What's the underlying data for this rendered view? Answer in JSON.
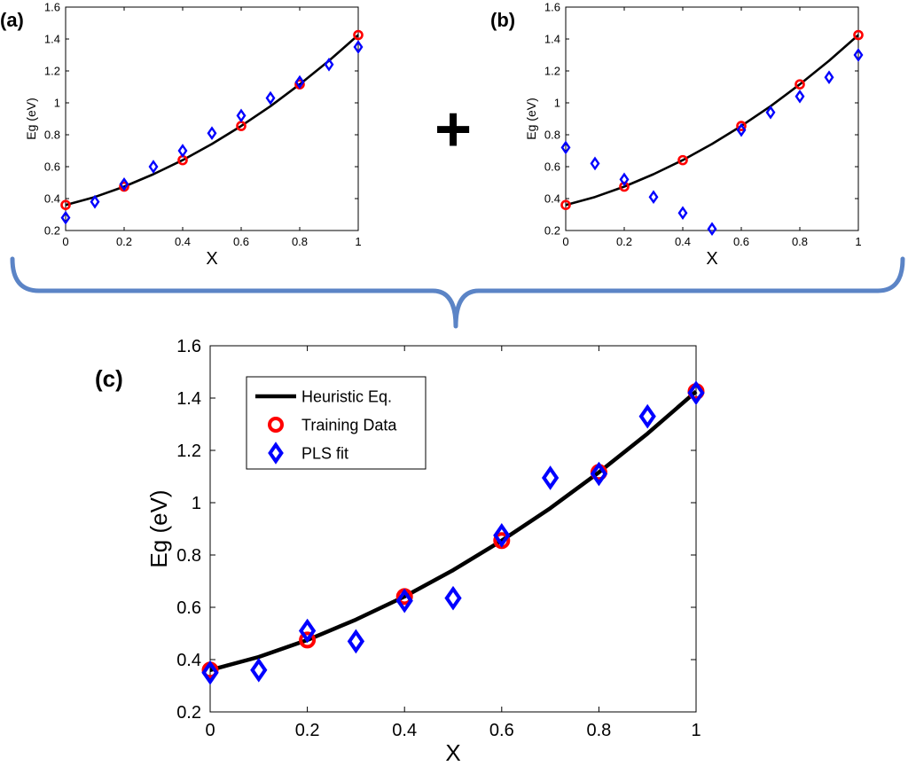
{
  "colors": {
    "heuristic": "#000000",
    "training": "#ff0000",
    "pls": "#0000ff",
    "brace": "#5b84c6",
    "axes": "#000000"
  },
  "plus_symbol": "+",
  "chart_data": [
    {
      "id": "a",
      "type": "scatter",
      "panel_label": "(a)",
      "xlabel": "X",
      "ylabel": "Eg (eV)",
      "xlim": [
        0,
        1
      ],
      "ylim": [
        0.2,
        1.6
      ],
      "xticks": [
        0,
        0.2,
        0.4,
        0.6,
        0.8,
        1
      ],
      "yticks": [
        0.2,
        0.4,
        0.6,
        0.8,
        1,
        1.2,
        1.4,
        1.6
      ],
      "xtick_labels": [
        "0",
        "0.2",
        "0.4",
        "0.6",
        "0.8",
        "1"
      ],
      "ytick_labels": [
        "0.2",
        "0.4",
        "0.6",
        "0.8",
        "1",
        "1.2",
        "1.4",
        "1.6"
      ],
      "series": [
        {
          "name": "Heuristic Eq.",
          "kind": "line",
          "x": [
            0,
            0.1,
            0.2,
            0.3,
            0.4,
            0.5,
            0.6,
            0.7,
            0.8,
            0.9,
            1
          ],
          "y": [
            0.36,
            0.41,
            0.475,
            0.553,
            0.641,
            0.742,
            0.855,
            0.979,
            1.116,
            1.264,
            1.425
          ]
        },
        {
          "name": "Training Data",
          "kind": "circle",
          "x": [
            0,
            0.2,
            0.4,
            0.6,
            0.8,
            1
          ],
          "y": [
            0.36,
            0.475,
            0.641,
            0.855,
            1.116,
            1.425
          ]
        },
        {
          "name": "PLS fit",
          "kind": "diamond",
          "x": [
            0,
            0.1,
            0.2,
            0.3,
            0.4,
            0.5,
            0.6,
            0.7,
            0.8,
            0.9,
            1
          ],
          "y": [
            0.28,
            0.38,
            0.49,
            0.6,
            0.7,
            0.81,
            0.92,
            1.03,
            1.13,
            1.24,
            1.35
          ]
        }
      ]
    },
    {
      "id": "b",
      "type": "scatter",
      "panel_label": "(b)",
      "xlabel": "X",
      "ylabel": "Eg (eV)",
      "xlim": [
        0,
        1
      ],
      "ylim": [
        0.2,
        1.6
      ],
      "xticks": [
        0,
        0.2,
        0.4,
        0.6,
        0.8,
        1
      ],
      "yticks": [
        0.2,
        0.4,
        0.6,
        0.8,
        1,
        1.2,
        1.4,
        1.6
      ],
      "xtick_labels": [
        "0",
        "0.2",
        "0.4",
        "0.6",
        "0.8",
        "1"
      ],
      "ytick_labels": [
        "0.2",
        "0.4",
        "0.6",
        "0.8",
        "1",
        "1.2",
        "1.4",
        "1.6"
      ],
      "series": [
        {
          "name": "Heuristic Eq.",
          "kind": "line",
          "x": [
            0,
            0.1,
            0.2,
            0.3,
            0.4,
            0.5,
            0.6,
            0.7,
            0.8,
            0.9,
            1
          ],
          "y": [
            0.36,
            0.41,
            0.475,
            0.553,
            0.641,
            0.742,
            0.855,
            0.979,
            1.116,
            1.264,
            1.425
          ]
        },
        {
          "name": "Training Data",
          "kind": "circle",
          "x": [
            0,
            0.2,
            0.4,
            0.6,
            0.8,
            1
          ],
          "y": [
            0.36,
            0.475,
            0.641,
            0.855,
            1.116,
            1.425
          ]
        },
        {
          "name": "PLS fit",
          "kind": "diamond",
          "x": [
            0,
            0.1,
            0.2,
            0.3,
            0.4,
            0.5,
            0.6,
            0.7,
            0.8,
            0.9,
            1
          ],
          "y": [
            0.72,
            0.62,
            0.52,
            0.41,
            0.31,
            0.21,
            0.83,
            0.94,
            1.04,
            1.16,
            1.3
          ]
        }
      ]
    },
    {
      "id": "c",
      "type": "scatter",
      "panel_label": "(c)",
      "xlabel": "X",
      "ylabel": "Eg (eV)",
      "xlim": [
        0,
        1
      ],
      "ylim": [
        0.2,
        1.6
      ],
      "xticks": [
        0,
        0.2,
        0.4,
        0.6,
        0.8,
        1
      ],
      "yticks": [
        0.2,
        0.4,
        0.6,
        0.8,
        1,
        1.2,
        1.4,
        1.6
      ],
      "xtick_labels": [
        "0",
        "0.2",
        "0.4",
        "0.6",
        "0.8",
        "1"
      ],
      "ytick_labels": [
        "0.2",
        "0.4",
        "0.6",
        "0.8",
        "1",
        "1.2",
        "1.4",
        "1.6"
      ],
      "legend": {
        "position": "top-left",
        "entries": [
          "Heuristic Eq.",
          "Training Data",
          "PLS fit"
        ]
      },
      "series": [
        {
          "name": "Heuristic Eq.",
          "kind": "line",
          "x": [
            0,
            0.1,
            0.2,
            0.3,
            0.4,
            0.5,
            0.6,
            0.7,
            0.8,
            0.9,
            1
          ],
          "y": [
            0.36,
            0.41,
            0.475,
            0.553,
            0.641,
            0.742,
            0.855,
            0.979,
            1.116,
            1.264,
            1.425
          ]
        },
        {
          "name": "Training Data",
          "kind": "circle",
          "x": [
            0,
            0.2,
            0.4,
            0.6,
            0.8,
            1
          ],
          "y": [
            0.36,
            0.475,
            0.641,
            0.855,
            1.116,
            1.425
          ]
        },
        {
          "name": "PLS fit",
          "kind": "diamond",
          "x": [
            0,
            0.1,
            0.2,
            0.3,
            0.4,
            0.5,
            0.6,
            0.7,
            0.8,
            0.9,
            1
          ],
          "y": [
            0.35,
            0.36,
            0.51,
            0.47,
            0.625,
            0.635,
            0.875,
            1.095,
            1.11,
            1.33,
            1.42
          ]
        }
      ]
    }
  ]
}
